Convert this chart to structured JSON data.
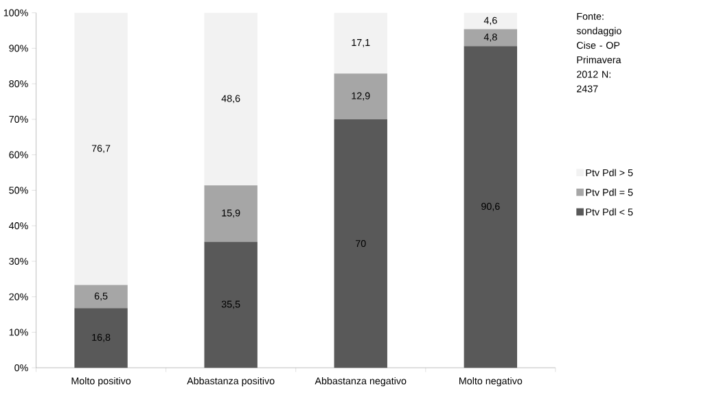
{
  "chart_data": {
    "type": "bar",
    "stacked": true,
    "categories": [
      "Molto positivo",
      "Abbastanza positivo",
      "Abbastanza negativo",
      "Molto negativo"
    ],
    "series": [
      {
        "name": "Ptv Pdl < 5",
        "color": "#595959",
        "values": [
          16.8,
          35.5,
          70,
          90.6
        ],
        "value_labels": [
          "16,8",
          "35,5",
          "70",
          "90,6"
        ]
      },
      {
        "name": "Ptv Pdl = 5",
        "color": "#a6a6a6",
        "values": [
          6.5,
          15.9,
          12.9,
          4.8
        ],
        "value_labels": [
          "6,5",
          "15,9",
          "12,9",
          "4,8"
        ]
      },
      {
        "name": "Ptv Pdl > 5",
        "color": "#f2f2f2",
        "values": [
          76.7,
          48.6,
          17.1,
          4.6
        ],
        "value_labels": [
          "76,7",
          "48,6",
          "17,1",
          "4,6"
        ]
      }
    ],
    "ylim": [
      0,
      100
    ],
    "yticks": [
      {
        "value": 0,
        "label": "0%"
      },
      {
        "value": 10,
        "label": "10%"
      },
      {
        "value": 20,
        "label": "20%"
      },
      {
        "value": 30,
        "label": "30%"
      },
      {
        "value": 40,
        "label": "40%"
      },
      {
        "value": 50,
        "label": "50%"
      },
      {
        "value": 60,
        "label": "60%"
      },
      {
        "value": 70,
        "label": "70%"
      },
      {
        "value": 80,
        "label": "80%"
      },
      {
        "value": 90,
        "label": "90%"
      },
      {
        "value": 100,
        "label": "100%"
      }
    ],
    "legend": "right",
    "grid": false,
    "annotations": [
      "Fonte: sondaggio Cise - OP Primavera 2012 N: 2437"
    ]
  }
}
